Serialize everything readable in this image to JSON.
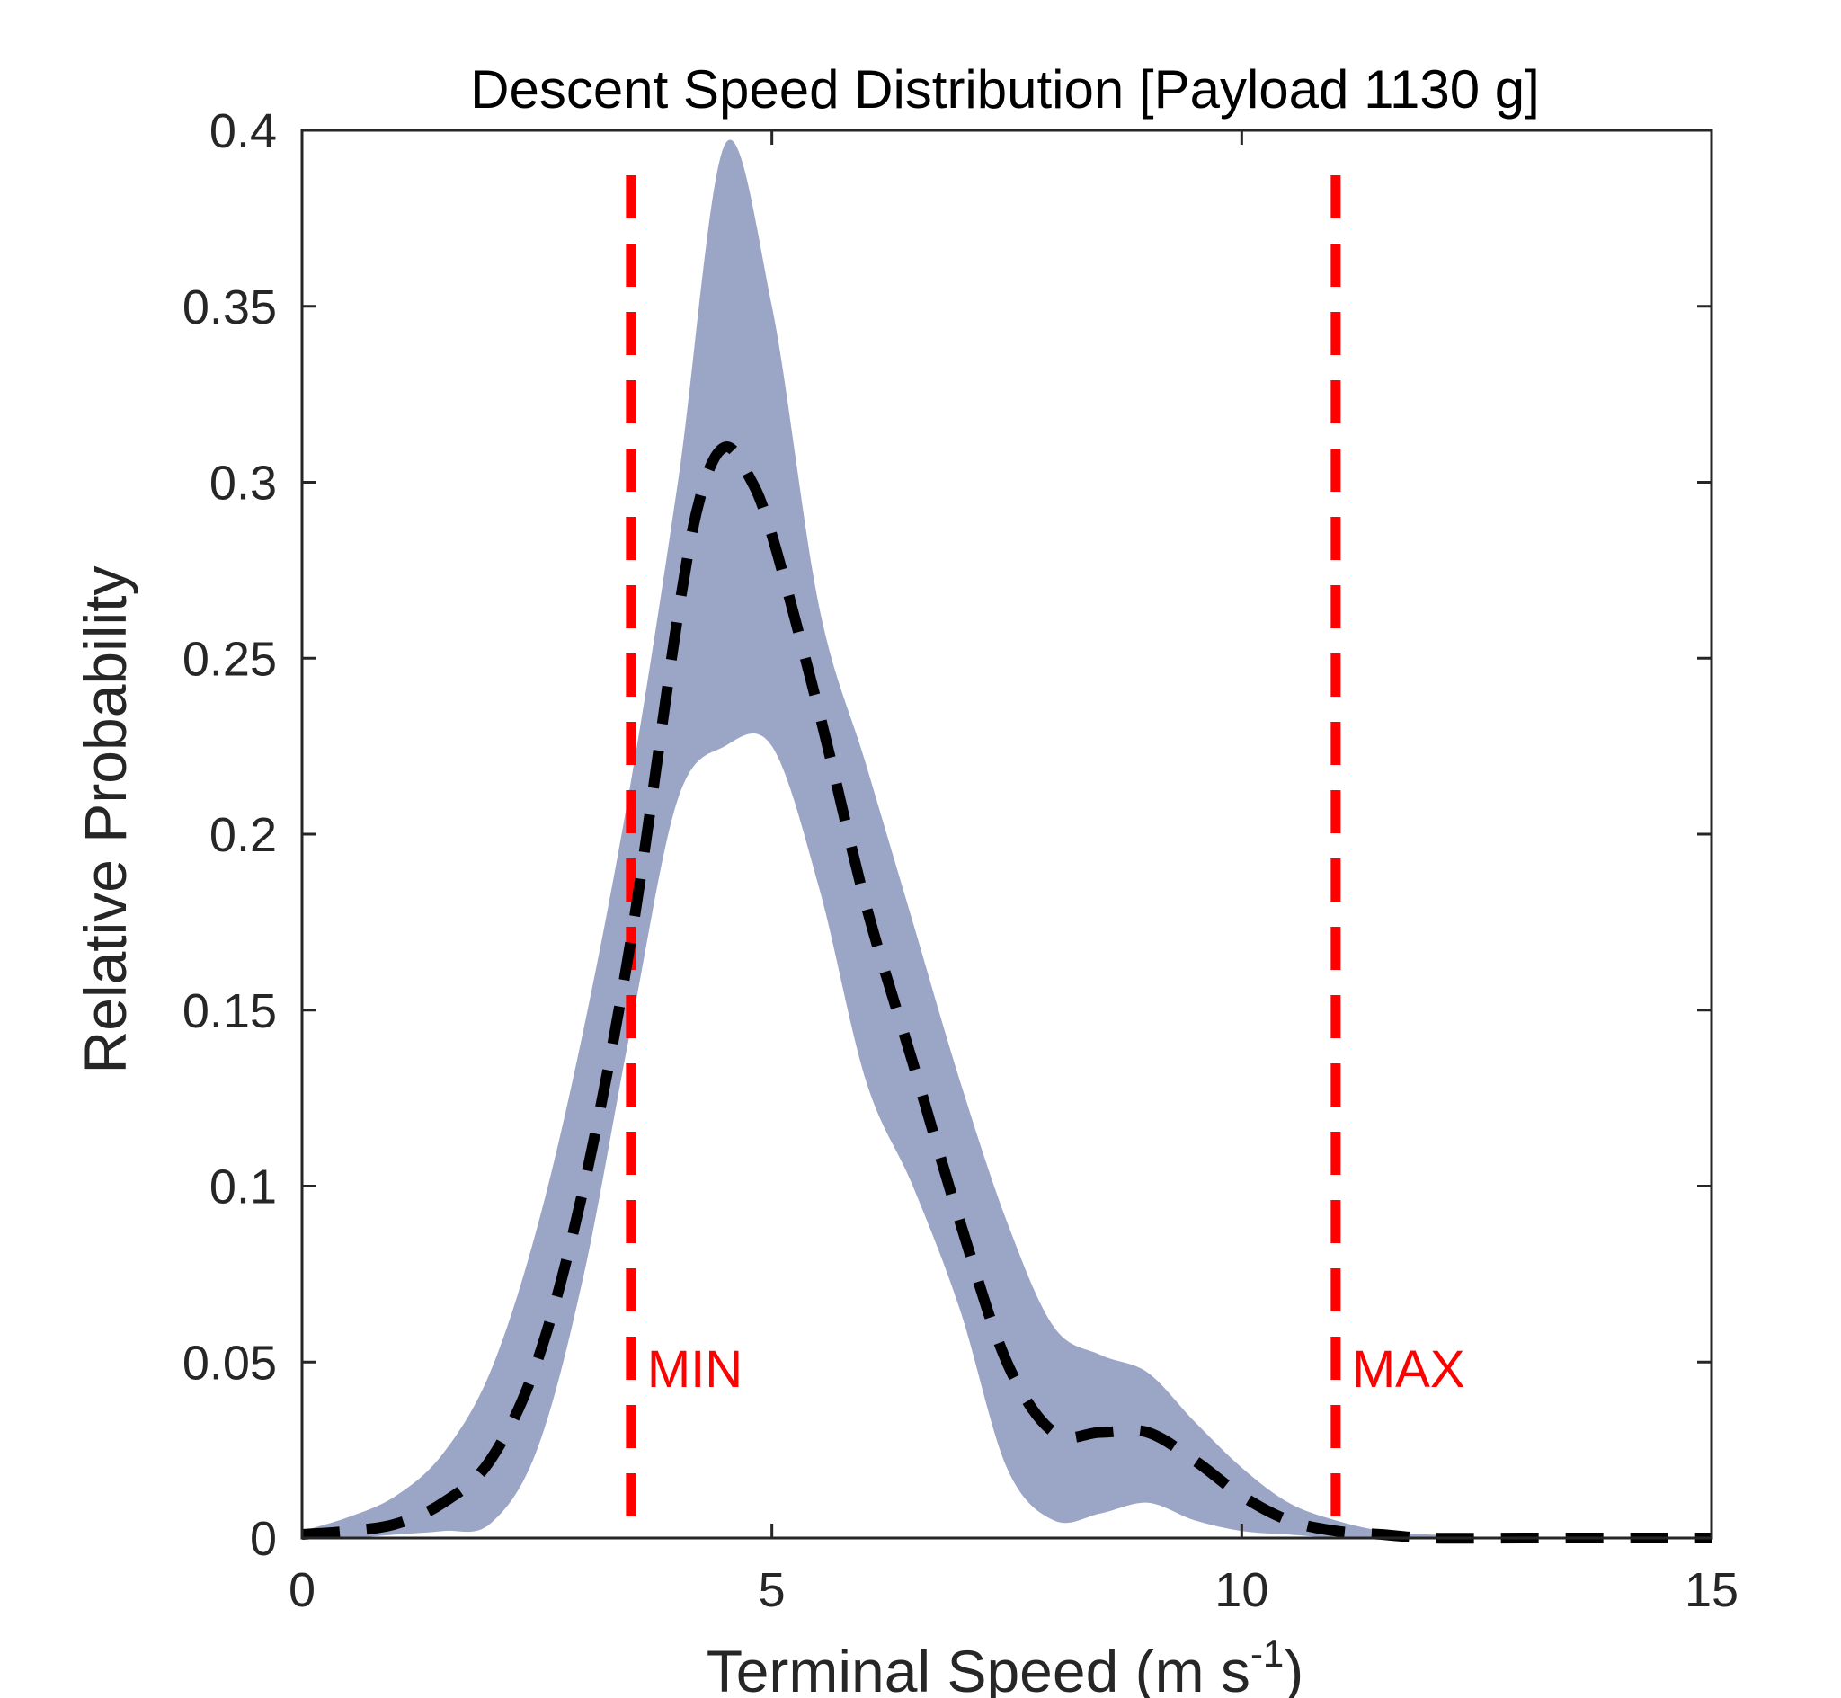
{
  "chart_data": {
    "type": "area",
    "title": "Descent Speed Distribution [Payload 1130 g]",
    "xlabel": "Terminal Speed (m s",
    "xlabel_superscript": "-1",
    "xlabel_close": ")",
    "ylabel": "Relative Probability",
    "xlim": [
      0,
      15
    ],
    "ylim": [
      0,
      0.4
    ],
    "xticks": [
      0,
      5,
      10,
      15
    ],
    "xtick_labels": [
      "0",
      "5",
      "10",
      "15"
    ],
    "yticks": [
      0,
      0.05,
      0.1,
      0.15,
      0.2,
      0.25,
      0.3,
      0.35,
      0.4
    ],
    "ytick_labels": [
      "0",
      "0.05",
      "0.1",
      "0.15",
      "0.2",
      "0.25",
      "0.3",
      "0.35",
      "0.4"
    ],
    "grid": false,
    "band": {
      "color": "#9ba6c6",
      "x": [
        0,
        0.5,
        1,
        1.5,
        2,
        2.5,
        3,
        3.5,
        4,
        4.5,
        5,
        5.5,
        6,
        6.5,
        7,
        7.5,
        8,
        8.5,
        9,
        9.5,
        10,
        10.5,
        11,
        11.5,
        12,
        13,
        14,
        15
      ],
      "upper": [
        0.002,
        0.006,
        0.012,
        0.024,
        0.047,
        0.088,
        0.145,
        0.215,
        0.3,
        0.396,
        0.35,
        0.265,
        0.22,
        0.175,
        0.13,
        0.09,
        0.06,
        0.052,
        0.047,
        0.033,
        0.02,
        0.01,
        0.005,
        0.002,
        0.001,
        0.0,
        0.0,
        0.0
      ],
      "lower": [
        0.0,
        0.0,
        0.001,
        0.002,
        0.004,
        0.025,
        0.075,
        0.145,
        0.21,
        0.225,
        0.225,
        0.185,
        0.13,
        0.1,
        0.065,
        0.02,
        0.005,
        0.007,
        0.01,
        0.005,
        0.002,
        0.001,
        0.0,
        0.0,
        0.0,
        0.0,
        0.0,
        0.0
      ]
    },
    "series": [
      {
        "style": "dashed",
        "color": "#000000",
        "x": [
          0,
          0.5,
          1,
          1.5,
          2,
          2.5,
          3,
          3.5,
          4,
          4.25,
          4.5,
          4.75,
          5,
          5.5,
          6,
          6.5,
          7,
          7.5,
          8,
          8.5,
          9,
          9.5,
          10,
          10.5,
          11,
          11.5,
          12,
          13,
          14,
          15
        ],
        "y": [
          0.001,
          0.002,
          0.004,
          0.01,
          0.022,
          0.05,
          0.1,
          0.17,
          0.262,
          0.297,
          0.31,
          0.302,
          0.285,
          0.235,
          0.18,
          0.135,
          0.09,
          0.05,
          0.03,
          0.03,
          0.03,
          0.022,
          0.012,
          0.005,
          0.002,
          0.001,
          0.0,
          0.0,
          0.0,
          0.0
        ]
      }
    ],
    "vlines": [
      {
        "x": 3.5,
        "label": "MIN",
        "color": "#ff0000"
      },
      {
        "x": 11,
        "label": "MAX",
        "color": "#ff0000"
      }
    ]
  }
}
